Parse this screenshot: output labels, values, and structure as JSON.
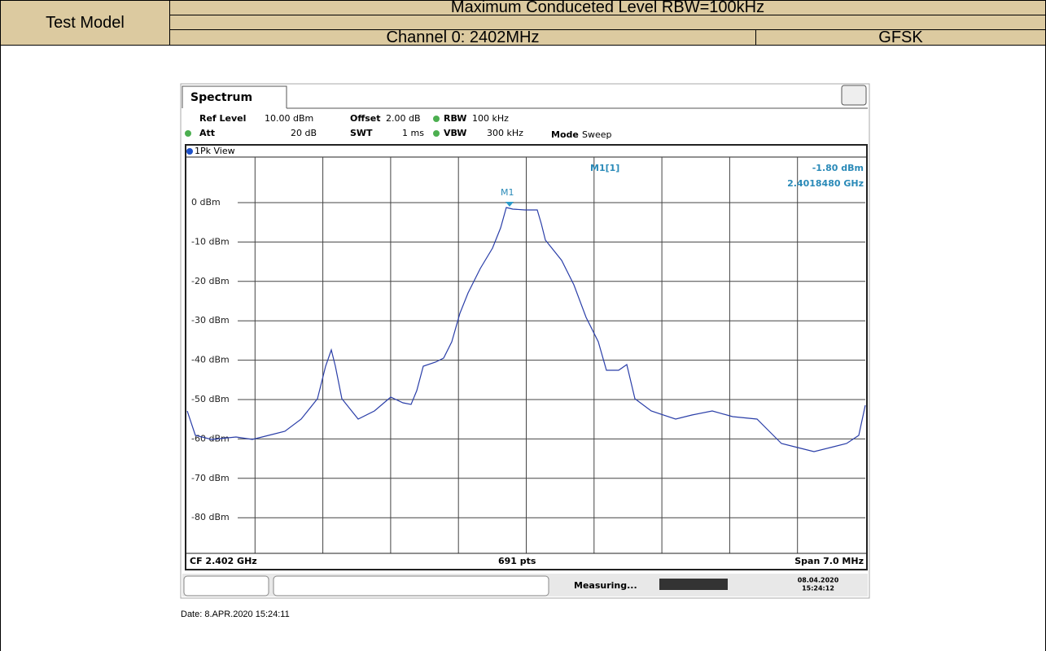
{
  "header": {
    "row_label": "Test Model",
    "title": "Maximum Conduceted Level RBW=100kHz",
    "channel": "Channel 0: 2402MHz",
    "modulation": "GFSK"
  },
  "spectrum": {
    "tab": "Spectrum",
    "ref_level_label": "Ref Level",
    "ref_level": "10.00 dBm",
    "offset_label": "Offset",
    "offset": "2.00 dB",
    "rbw_label": "RBW",
    "rbw": "100 kHz",
    "att_label": "Att",
    "att": "20 dB",
    "swt_label": "SWT",
    "swt": "1 ms",
    "vbw_label": "VBW",
    "vbw": "300 kHz",
    "mode_label": "Mode",
    "mode": "Sweep",
    "view": "1Pk View",
    "y_labels": [
      "0 dBm",
      "-10 dBm",
      "-20 dBm",
      "-30 dBm",
      "-40 dBm",
      "-50 dBm",
      "-60 dBm",
      "-70 dBm",
      "-80 dBm"
    ],
    "marker": "M1",
    "marker_readout": "M1[1]",
    "marker_level": "-1.80 dBm",
    "marker_freq": "2.4018480 GHz",
    "cf": "CF 2.402 GHz",
    "points": "691 pts",
    "span": "Span 7.0 MHz",
    "status": "Measuring...",
    "status_date": "08.04.2020",
    "status_time": "15:24:12"
  },
  "footer": {
    "date": "Date: 8.APR.2020 15:24:11"
  }
}
